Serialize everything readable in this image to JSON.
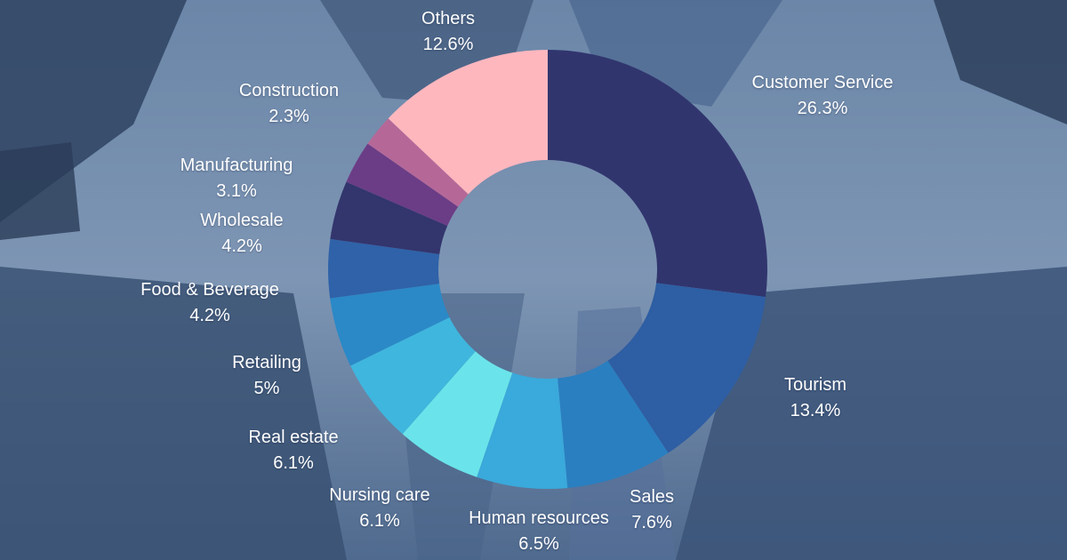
{
  "chart_data": {
    "type": "pie",
    "donut": true,
    "title": "",
    "slices": [
      {
        "label": "Customer Service",
        "value": 26.3,
        "value_label": "26.3%",
        "color": "#31356e"
      },
      {
        "label": "Tourism",
        "value": 13.4,
        "value_label": "13.4%",
        "color": "#2e5ea3"
      },
      {
        "label": "Sales",
        "value": 7.6,
        "value_label": "7.6%",
        "color": "#2a7fc0"
      },
      {
        "label": "Human resources",
        "value": 6.5,
        "value_label": "6.5%",
        "color": "#3aa9db"
      },
      {
        "label": "Nursing care",
        "value": 6.1,
        "value_label": "6.1%",
        "color": "#6ae4ea"
      },
      {
        "label": "Real estate",
        "value": 6.1,
        "value_label": "6.1%",
        "color": "#3fb6de"
      },
      {
        "label": "Retailing",
        "value": 5,
        "value_label": "5%",
        "color": "#2b89c7"
      },
      {
        "label": "Food & Beverage",
        "value": 4.2,
        "value_label": "4.2%",
        "color": "#2f62a8"
      },
      {
        "label": "Wholesale",
        "value": 4.2,
        "value_label": "4.2%",
        "color": "#33356d"
      },
      {
        "label": "Manufacturing",
        "value": 3.1,
        "value_label": "3.1%",
        "color": "#6b3d86"
      },
      {
        "label": "Construction",
        "value": 2.3,
        "value_label": "2.3%",
        "color": "#b56898"
      },
      {
        "label": "Others",
        "value": 12.6,
        "value_label": "12.6%",
        "color": "#ffb7be"
      }
    ]
  }
}
